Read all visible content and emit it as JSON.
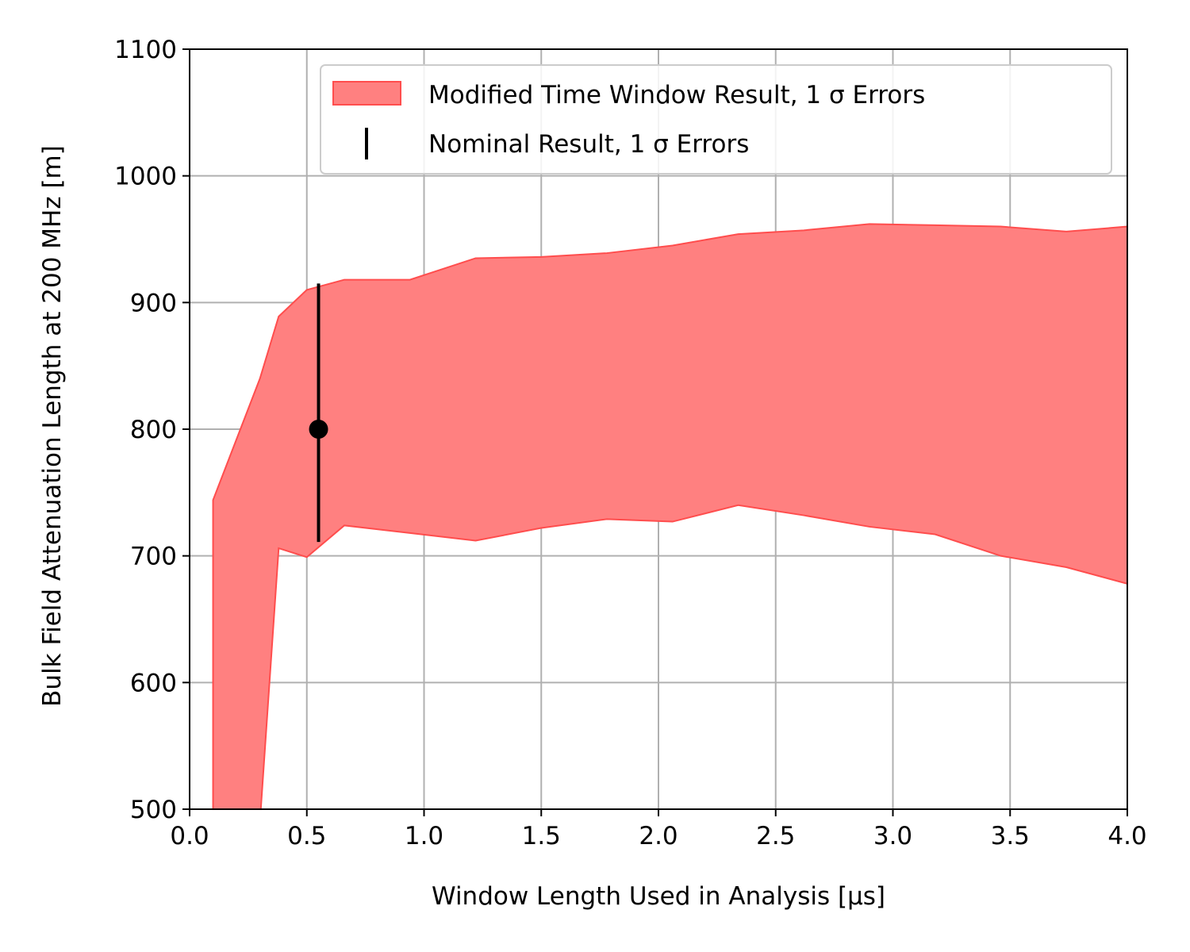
{
  "chart_data": {
    "type": "area",
    "xlabel": "Window Length Used in Analysis [μs]",
    "ylabel": "Bulk Field Attenuation Length at 200 MHz [m]",
    "xlim": [
      0.0,
      4.0
    ],
    "ylim": [
      500,
      1100
    ],
    "xticks": [
      "0.0",
      "0.5",
      "1.0",
      "1.5",
      "2.0",
      "2.5",
      "3.0",
      "3.5",
      "4.0"
    ],
    "yticks": [
      "500",
      "600",
      "700",
      "800",
      "900",
      "1000",
      "1100"
    ],
    "grid": true,
    "legend_position": "top-right",
    "band": {
      "name": "Modified Time Window Result, 1 σ Errors",
      "color": "#ff8080",
      "edge_color": "#ff4d4d",
      "x": [
        0.1,
        0.3,
        0.38,
        0.5,
        0.66,
        0.94,
        1.22,
        1.5,
        1.78,
        2.06,
        2.34,
        2.62,
        2.9,
        3.18,
        3.46,
        3.74,
        4.0
      ],
      "upper": [
        744,
        840,
        889,
        910,
        918,
        918,
        935,
        936,
        939,
        945,
        954,
        957,
        962,
        961,
        960,
        956,
        960
      ],
      "lower": [
        420,
        490,
        706,
        699,
        724,
        718,
        712,
        722,
        729,
        727,
        740,
        732,
        723,
        717,
        700,
        691,
        678
      ]
    },
    "point": {
      "name": "Nominal Result, 1 σ Errors",
      "color": "#000000",
      "x": 0.55,
      "y": 800,
      "ymin": 711,
      "ymax": 915
    }
  }
}
